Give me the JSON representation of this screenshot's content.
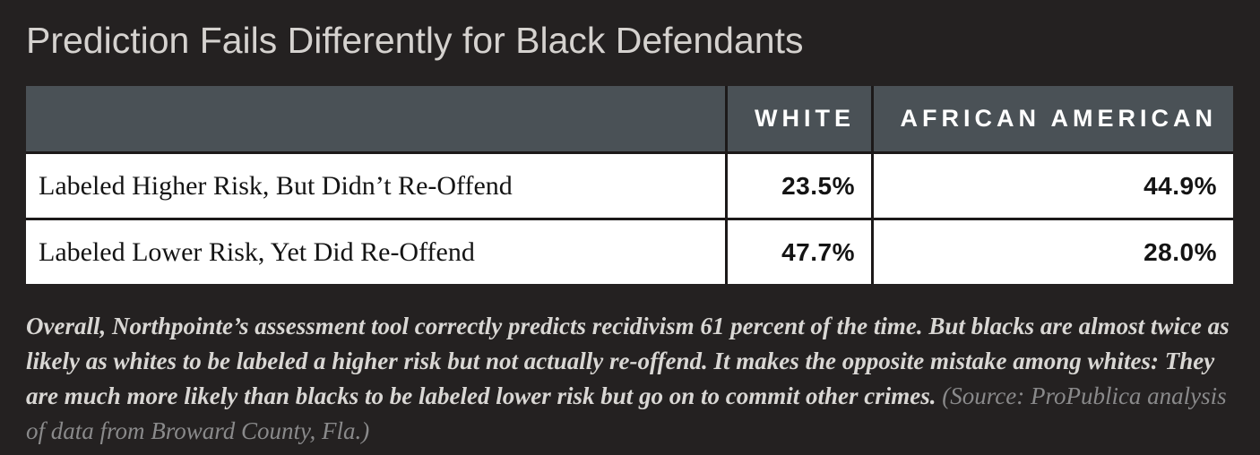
{
  "title": "Prediction Fails Differently for Black Defendants",
  "table": {
    "columns": {
      "blank": "",
      "col1": "WHITE",
      "col2": "AFRICAN AMERICAN"
    },
    "rows": [
      {
        "label": "Labeled Higher Risk, But Didn’t Re-Offend",
        "white": "23.5%",
        "african_american": "44.9%"
      },
      {
        "label": "Labeled Lower Risk, Yet Did Re-Offend",
        "white": "47.7%",
        "african_american": "28.0%"
      }
    ]
  },
  "caption": {
    "main": "Overall, Northpointe’s assessment tool correctly predicts recidivism 61 percent of the time. But blacks are almost twice as likely as whites to be labeled a higher risk but not actually re-offend. It makes the opposite mistake among whites: They are much more likely than blacks to be labeled lower risk but go on to commit other crimes.",
    "source": "(Source: ProPublica analysis of data from Broward County, Fla.)"
  },
  "colors": {
    "page_background": "#242121",
    "header_background": "#4a5156",
    "header_text": "#ffffff",
    "row_background": "#ffffff",
    "row_text": "#141414",
    "title_text": "#d5d2cf",
    "caption_text": "#d9d7d4",
    "source_text": "#8a8a8b",
    "grid_line": "#1c1919"
  },
  "chart_data": {
    "type": "table",
    "title": "Prediction Fails Differently for Black Defendants",
    "categories": [
      "Labeled Higher Risk, But Didn’t Re-Offend",
      "Labeled Lower Risk, Yet Did Re-Offend"
    ],
    "series": [
      {
        "name": "WHITE",
        "values": [
          23.5,
          47.7
        ]
      },
      {
        "name": "AFRICAN AMERICAN",
        "values": [
          44.9,
          28.0
        ]
      }
    ],
    "unit": "percent",
    "note": "Overall, Northpointe’s assessment tool correctly predicts recidivism 61 percent of the time. But blacks are almost twice as likely as whites to be labeled a higher risk but not actually re-offend. It makes the opposite mistake among whites: They are much more likely than blacks to be labeled lower risk but go on to commit other crimes. (Source: ProPublica analysis of data from Broward County, Fla.)"
  }
}
